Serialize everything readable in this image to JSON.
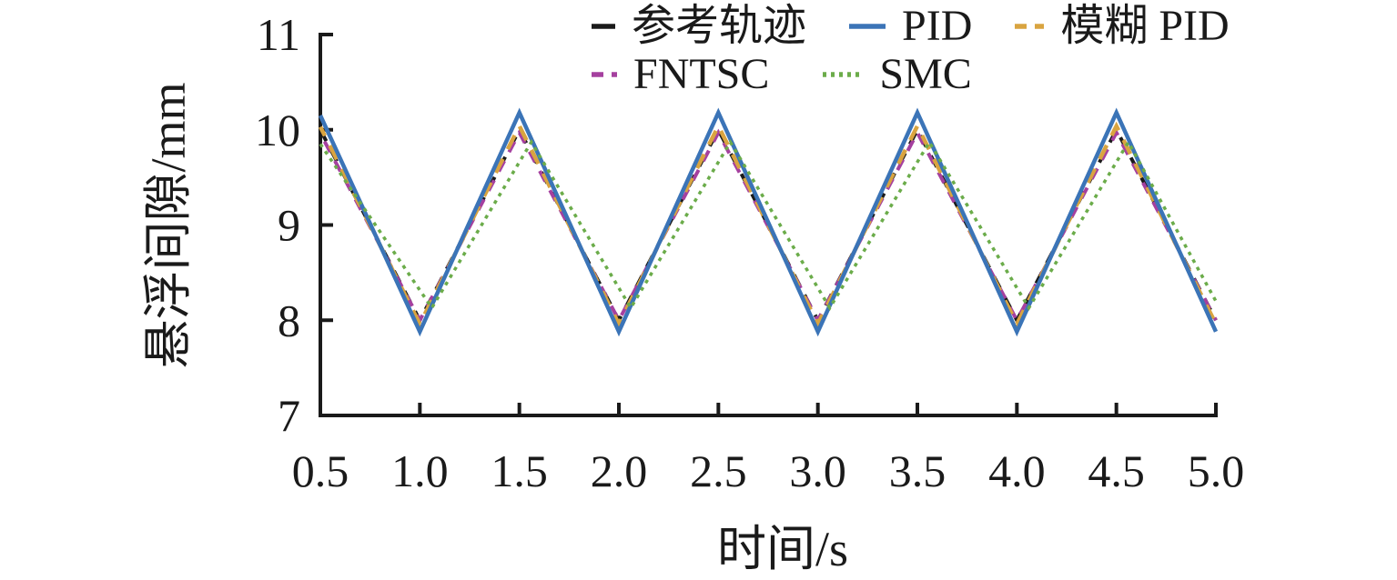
{
  "chart_data": {
    "type": "line",
    "title": "",
    "xlabel": "时间/s",
    "ylabel": "悬浮间隙/mm",
    "xlim": [
      0.5,
      5.0
    ],
    "ylim": [
      7,
      11
    ],
    "grid": false,
    "legend_position": "top",
    "x_ticks": [
      0.5,
      1.0,
      1.5,
      2.0,
      2.5,
      3.0,
      3.5,
      4.0,
      4.5,
      5.0
    ],
    "x_tick_labels": [
      "0.5",
      "1.0",
      "1.5",
      "2.0",
      "2.5",
      "3.0",
      "3.5",
      "4.0",
      "4.5",
      "5.0"
    ],
    "y_ticks": [
      7,
      8,
      9,
      10,
      11
    ],
    "y_tick_labels": [
      "7",
      "8",
      "9",
      "10",
      "11"
    ],
    "axis_color": "#1a1a1a",
    "series": [
      {
        "key": "reference",
        "name": "参考轨迹",
        "color": "#1a1a1a",
        "style": "dashed",
        "sample_style": "single-dash",
        "points": [
          [
            0.5,
            10.0
          ],
          [
            1.0,
            8.0
          ],
          [
            1.5,
            10.0
          ],
          [
            2.0,
            8.0
          ],
          [
            2.5,
            10.0
          ],
          [
            3.0,
            8.0
          ],
          [
            3.5,
            10.0
          ],
          [
            4.0,
            8.0
          ],
          [
            4.5,
            10.0
          ],
          [
            5.0,
            8.0
          ]
        ]
      },
      {
        "key": "pid",
        "name": "PID",
        "color": "#3b74b7",
        "style": "solid",
        "sample_style": "solid",
        "points": [
          [
            0.5,
            10.15
          ],
          [
            1.0,
            7.88
          ],
          [
            1.5,
            10.18
          ],
          [
            2.0,
            7.88
          ],
          [
            2.5,
            10.18
          ],
          [
            3.0,
            7.88
          ],
          [
            3.5,
            10.18
          ],
          [
            4.0,
            7.88
          ],
          [
            4.5,
            10.18
          ],
          [
            5.0,
            7.88
          ]
        ]
      },
      {
        "key": "fuzzy-pid",
        "name": "模糊 PID",
        "color": "#d9a440",
        "style": "dashed",
        "sample_style": "dashes",
        "points": [
          [
            0.5,
            10.03
          ],
          [
            1.0,
            7.96
          ],
          [
            1.5,
            10.04
          ],
          [
            2.0,
            7.96
          ],
          [
            2.5,
            10.04
          ],
          [
            3.0,
            7.96
          ],
          [
            3.5,
            10.04
          ],
          [
            4.0,
            7.96
          ],
          [
            4.5,
            10.04
          ],
          [
            5.0,
            7.96
          ]
        ]
      },
      {
        "key": "fntsc",
        "name": "FNTSC",
        "color": "#a5409f",
        "style": "dashed",
        "sample_style": "dashes",
        "points": [
          [
            0.5,
            9.96
          ],
          [
            1.0,
            8.0
          ],
          [
            1.5,
            9.97
          ],
          [
            2.0,
            8.0
          ],
          [
            2.5,
            9.97
          ],
          [
            3.0,
            8.0
          ],
          [
            3.5,
            9.97
          ],
          [
            4.0,
            8.0
          ],
          [
            4.5,
            9.97
          ],
          [
            5.0,
            8.0
          ]
        ]
      },
      {
        "key": "smc",
        "name": "SMC",
        "color": "#6bac4a",
        "style": "dotted",
        "sample_style": "dots",
        "points": [
          [
            0.5,
            9.85
          ],
          [
            1.06,
            8.13
          ],
          [
            1.56,
            9.87
          ],
          [
            2.06,
            8.13
          ],
          [
            2.56,
            9.87
          ],
          [
            3.06,
            8.13
          ],
          [
            3.56,
            9.87
          ],
          [
            4.06,
            8.13
          ],
          [
            4.56,
            9.87
          ],
          [
            5.0,
            8.2
          ]
        ]
      }
    ]
  }
}
